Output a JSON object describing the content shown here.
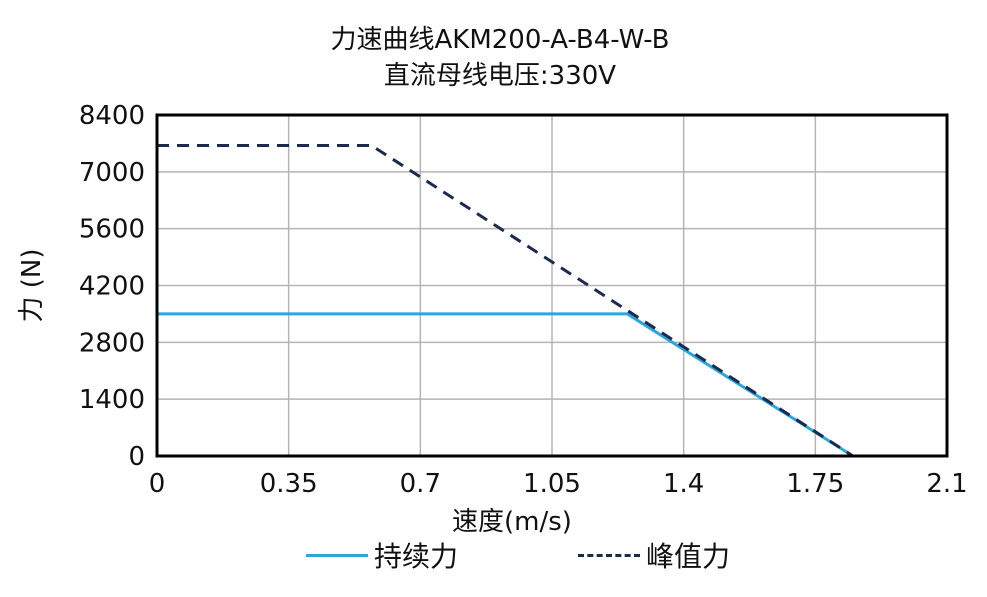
{
  "chart_data": {
    "type": "line",
    "title": "力速曲线AKM200-A-B4-W-B",
    "subtitle": "直流母线电压:330V",
    "xlabel": "速度(m/s)",
    "ylabel": "力 (N)",
    "xlim": [
      0,
      2.1
    ],
    "ylim": [
      0,
      8400
    ],
    "x_ticks": [
      "0",
      "0.35",
      "0.7",
      "1.05",
      "1.4",
      "1.75",
      "2.1"
    ],
    "y_ticks": [
      "0",
      "1400",
      "2800",
      "4200",
      "5600",
      "7000",
      "8400"
    ],
    "grid": true,
    "legend_position": "bottom",
    "series": [
      {
        "name": "持续力",
        "style": "solid",
        "color": "#2aa7dc",
        "x": [
          0,
          1.25,
          1.85
        ],
        "y": [
          3500,
          3500,
          0
        ]
      },
      {
        "name": "峰值力",
        "style": "dashed",
        "color": "#1c2a4e",
        "x": [
          0,
          0.57,
          1.85
        ],
        "y": [
          7650,
          7650,
          0
        ]
      }
    ]
  }
}
